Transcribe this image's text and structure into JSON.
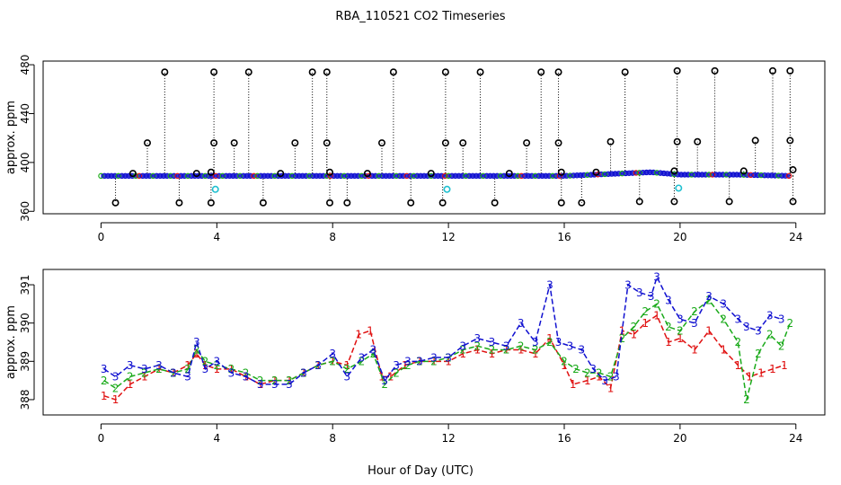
{
  "figure": {
    "title": "RBA_110521  CO2 Timeseries",
    "xlabel": "Hour of Day (UTC)"
  },
  "colors": {
    "series1": "#e01010",
    "series2": "#1aaa1a",
    "series3": "#1010d0",
    "outlier": "#000000",
    "flagged": "#20c0d0"
  },
  "chart_data": [
    {
      "type": "scatter",
      "name": "top-panel",
      "ylabel": "approx. ppm",
      "xlim": [
        -2,
        25
      ],
      "ylim": [
        358,
        483
      ],
      "xticks": [
        0,
        4,
        8,
        12,
        16,
        20,
        24
      ],
      "yticks": [
        360,
        400,
        440,
        480
      ],
      "baseline_series": [
        {
          "name": "3",
          "x": [
            0,
            2,
            4,
            6,
            8,
            10,
            12,
            14,
            16,
            18,
            19,
            20,
            22,
            23.8
          ],
          "y": [
            389,
            389,
            389,
            389,
            389,
            389,
            389,
            389,
            389,
            391,
            392,
            390,
            390,
            389
          ]
        }
      ],
      "outliers_high": [
        {
          "x": 2.2,
          "y": 474
        },
        {
          "x": 3.9,
          "y": 474
        },
        {
          "x": 5.1,
          "y": 474
        },
        {
          "x": 7.3,
          "y": 474
        },
        {
          "x": 7.8,
          "y": 474
        },
        {
          "x": 10.1,
          "y": 474
        },
        {
          "x": 11.9,
          "y": 474
        },
        {
          "x": 13.1,
          "y": 474
        },
        {
          "x": 15.2,
          "y": 474
        },
        {
          "x": 15.8,
          "y": 474
        },
        {
          "x": 18.1,
          "y": 474
        },
        {
          "x": 19.9,
          "y": 475
        },
        {
          "x": 21.2,
          "y": 475
        },
        {
          "x": 23.2,
          "y": 475
        },
        {
          "x": 23.8,
          "y": 475
        }
      ],
      "outliers_mid": [
        {
          "x": 1.6,
          "y": 416
        },
        {
          "x": 3.9,
          "y": 416
        },
        {
          "x": 4.6,
          "y": 416
        },
        {
          "x": 6.7,
          "y": 416
        },
        {
          "x": 7.8,
          "y": 416
        },
        {
          "x": 9.7,
          "y": 416
        },
        {
          "x": 11.9,
          "y": 416
        },
        {
          "x": 12.5,
          "y": 416
        },
        {
          "x": 14.7,
          "y": 416
        },
        {
          "x": 15.8,
          "y": 416
        },
        {
          "x": 17.6,
          "y": 417
        },
        {
          "x": 19.9,
          "y": 417
        },
        {
          "x": 20.6,
          "y": 417
        },
        {
          "x": 22.6,
          "y": 418
        },
        {
          "x": 23.8,
          "y": 418
        }
      ],
      "outliers_low": [
        {
          "x": 0.5,
          "y": 367
        },
        {
          "x": 2.7,
          "y": 367
        },
        {
          "x": 3.8,
          "y": 367
        },
        {
          "x": 5.6,
          "y": 367
        },
        {
          "x": 7.9,
          "y": 367
        },
        {
          "x": 8.5,
          "y": 367
        },
        {
          "x": 10.7,
          "y": 367
        },
        {
          "x": 11.8,
          "y": 367
        },
        {
          "x": 13.6,
          "y": 367
        },
        {
          "x": 15.9,
          "y": 367
        },
        {
          "x": 16.6,
          "y": 367
        },
        {
          "x": 18.6,
          "y": 368
        },
        {
          "x": 19.8,
          "y": 368
        },
        {
          "x": 21.7,
          "y": 368
        },
        {
          "x": 23.9,
          "y": 368
        }
      ],
      "outliers_near": [
        {
          "x": 1.1,
          "y": 391
        },
        {
          "x": 3.3,
          "y": 391
        },
        {
          "x": 3.8,
          "y": 392
        },
        {
          "x": 6.2,
          "y": 391
        },
        {
          "x": 7.9,
          "y": 392
        },
        {
          "x": 9.2,
          "y": 391
        },
        {
          "x": 11.4,
          "y": 391
        },
        {
          "x": 14.1,
          "y": 391
        },
        {
          "x": 15.9,
          "y": 392
        },
        {
          "x": 17.1,
          "y": 392
        },
        {
          "x": 19.8,
          "y": 393
        },
        {
          "x": 22.2,
          "y": 393
        },
        {
          "x": 23.9,
          "y": 394
        }
      ],
      "flagged_points": [
        {
          "x": 3.95,
          "y": 378
        },
        {
          "x": 11.95,
          "y": 378
        },
        {
          "x": 19.95,
          "y": 379
        }
      ]
    },
    {
      "type": "line",
      "name": "bottom-panel",
      "ylabel": "approx. ppm",
      "xlim": [
        -2,
        25
      ],
      "ylim": [
        387.6,
        391.4
      ],
      "xticks": [
        0,
        4,
        8,
        12,
        16,
        20,
        24
      ],
      "yticks": [
        388,
        389,
        390,
        391
      ],
      "series": [
        {
          "name": "1",
          "x": [
            0.1,
            0.5,
            1,
            1.5,
            2,
            2.5,
            3,
            3.3,
            3.6,
            4,
            4.5,
            5,
            5.5,
            6,
            6.5,
            7,
            7.5,
            8,
            8.5,
            8.9,
            9.3,
            9.7,
            10,
            10.5,
            11,
            11.5,
            12,
            12.5,
            13,
            13.5,
            14,
            14.5,
            15,
            15.5,
            16,
            16.3,
            16.8,
            17.2,
            17.6,
            18,
            18.4,
            18.8,
            19.2,
            19.6,
            20,
            20.5,
            21,
            21.5,
            22,
            22.4,
            22.8,
            23.2,
            23.6
          ],
          "y": [
            388.1,
            388.0,
            388.4,
            388.6,
            388.8,
            388.7,
            388.9,
            389.2,
            388.9,
            388.8,
            388.8,
            388.6,
            388.4,
            388.5,
            388.5,
            388.7,
            388.9,
            389.0,
            388.9,
            389.7,
            389.8,
            388.6,
            388.6,
            388.9,
            389.0,
            389.0,
            389.0,
            389.2,
            389.3,
            389.2,
            389.3,
            389.3,
            389.2,
            389.6,
            388.9,
            388.4,
            388.5,
            388.6,
            388.3,
            389.8,
            389.7,
            390.0,
            390.2,
            389.5,
            389.6,
            389.3,
            389.8,
            389.3,
            388.9,
            388.6,
            388.7,
            388.8,
            388.9
          ]
        },
        {
          "name": "2",
          "x": [
            0.1,
            0.5,
            1,
            1.5,
            2,
            2.5,
            3,
            3.3,
            3.6,
            4,
            4.5,
            5,
            5.5,
            6,
            6.5,
            7,
            7.5,
            8,
            8.5,
            9,
            9.4,
            9.8,
            10.2,
            10.6,
            11,
            11.5,
            12,
            12.5,
            13,
            13.5,
            14,
            14.5,
            15,
            15.5,
            16,
            16.4,
            16.8,
            17.2,
            17.6,
            18,
            18.4,
            18.8,
            19.2,
            19.6,
            20,
            20.5,
            21,
            21.5,
            22,
            22.3,
            22.7,
            23.1,
            23.5,
            23.8
          ],
          "y": [
            388.5,
            388.3,
            388.6,
            388.7,
            388.8,
            388.7,
            388.8,
            389.3,
            389.0,
            388.9,
            388.8,
            388.7,
            388.5,
            388.5,
            388.5,
            388.7,
            388.9,
            389.0,
            388.8,
            389.0,
            389.2,
            388.4,
            388.7,
            388.9,
            389.0,
            389.0,
            389.1,
            389.3,
            389.4,
            389.3,
            389.3,
            389.4,
            389.3,
            389.5,
            389.0,
            388.8,
            388.7,
            388.7,
            388.6,
            389.6,
            389.9,
            390.3,
            390.5,
            389.9,
            389.8,
            390.3,
            390.6,
            390.1,
            389.5,
            388.0,
            389.2,
            389.7,
            389.4,
            390.0
          ]
        },
        {
          "name": "3",
          "x": [
            0.1,
            0.5,
            1,
            1.5,
            2,
            2.5,
            3,
            3.3,
            3.6,
            4,
            4.5,
            5,
            5.5,
            6,
            6.5,
            7,
            7.5,
            8,
            8.5,
            9,
            9.4,
            9.8,
            10.2,
            10.6,
            11,
            11.5,
            12,
            12.5,
            13,
            13.5,
            14,
            14.5,
            15,
            15.5,
            15.8,
            16.2,
            16.6,
            17,
            17.4,
            17.8,
            18.2,
            18.6,
            19,
            19.2,
            19.6,
            20,
            20.5,
            21,
            21.5,
            22,
            22.3,
            22.7,
            23.1,
            23.5
          ],
          "y": [
            388.8,
            388.6,
            388.9,
            388.8,
            388.9,
            388.7,
            388.6,
            389.5,
            388.8,
            389.0,
            388.7,
            388.6,
            388.4,
            388.4,
            388.4,
            388.7,
            388.9,
            389.2,
            388.6,
            389.1,
            389.3,
            388.5,
            388.9,
            389.0,
            389.0,
            389.1,
            389.1,
            389.4,
            389.6,
            389.5,
            389.4,
            390.0,
            389.5,
            391.0,
            389.5,
            389.4,
            389.3,
            388.8,
            388.5,
            388.6,
            391.0,
            390.8,
            390.7,
            391.2,
            390.6,
            390.1,
            390.0,
            390.7,
            390.5,
            390.1,
            389.9,
            389.8,
            390.2,
            390.1
          ]
        }
      ]
    }
  ]
}
